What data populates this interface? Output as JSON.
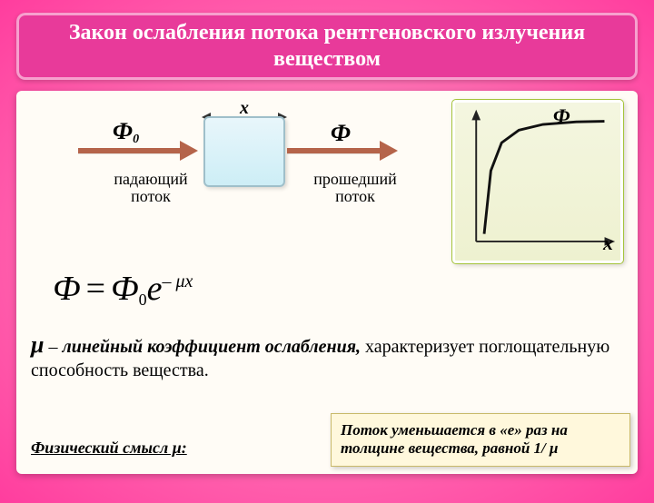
{
  "header": {
    "title": "Закон ослабления потока рентгеновского излучения веществом",
    "bg_color": "#e83a9a",
    "text_color": "#ffffff",
    "title_fontsize": 24
  },
  "diagram": {
    "x_label": "x",
    "phi0_label": "Ф",
    "phi0_sub": "0",
    "phi_label": "Ф",
    "incoming_label": "падающий поток",
    "outgoing_label": "прошедший поток",
    "arrow_color": "#b5644a",
    "slab_fill_top": "#e8f6fb",
    "slab_fill_bottom": "#cdeef6",
    "slab_border": "#9fbfca"
  },
  "graph": {
    "type": "line",
    "y_label": "Ф",
    "x_label": "x",
    "bg_top": "#f4f6e0",
    "bg_bottom": "#eef1d0",
    "axis_color": "#222222",
    "curve_color": "#111111",
    "curve_width": 3,
    "xlim": [
      0,
      10
    ],
    "ylim": [
      0,
      10
    ],
    "curve_points": [
      [
        0.6,
        0.6
      ],
      [
        1.1,
        5.6
      ],
      [
        1.9,
        7.8
      ],
      [
        3.2,
        8.8
      ],
      [
        5.0,
        9.25
      ],
      [
        7.5,
        9.45
      ],
      [
        9.6,
        9.5
      ]
    ]
  },
  "formula": {
    "lhs": "Ф",
    "rhs_base": "Ф",
    "rhs_sub": "0",
    "exp_base": "e",
    "exp_sup_prefix": "–",
    "exp_sup_mu": "μ",
    "exp_sup_var": "x",
    "fontsize": 38
  },
  "mu_definition": {
    "mu_symbol": "μ",
    "sep": " – ",
    "term": "линейный коэффициент ослабления,",
    "desc": "характеризует поглощательную способность вещества."
  },
  "phys_meaning_label": "Физический смысл μ:",
  "callout": {
    "text": "Поток уменьшается в «е» раз на толщине вещества, равной 1/ μ",
    "bg": "#fff8dc",
    "border": "#c9b96a"
  },
  "page_bg_inner": "#ff9ec7",
  "page_bg_outer": "#ff3d9e"
}
